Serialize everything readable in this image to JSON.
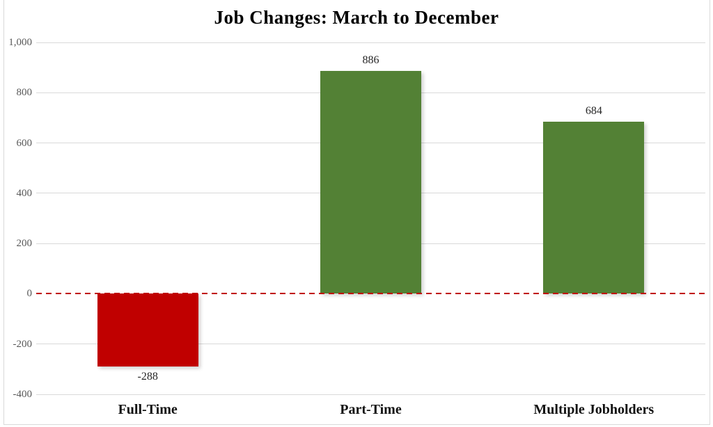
{
  "chart_data": {
    "type": "bar",
    "title": "Job Changes: March to December",
    "categories": [
      "Full-Time",
      "Part-Time",
      "Multiple Jobholders"
    ],
    "values": [
      -288,
      886,
      684
    ],
    "value_labels": [
      "-288",
      "886",
      "684"
    ],
    "xlabel": "",
    "ylabel": "",
    "ylim": [
      -400,
      1000
    ],
    "ytick_interval": 200,
    "yticks": [
      {
        "value": 1000,
        "label": "1,000"
      },
      {
        "value": 800,
        "label": "800"
      },
      {
        "value": 600,
        "label": "600"
      },
      {
        "value": 400,
        "label": "400"
      },
      {
        "value": 200,
        "label": "200"
      },
      {
        "value": 0,
        "label": "0"
      },
      {
        "value": -200,
        "label": "-200"
      },
      {
        "value": -400,
        "label": "-400"
      }
    ],
    "grid": true,
    "legend": "none",
    "zero_line": {
      "style": "dashed",
      "color": "#c00000"
    },
    "colors": {
      "positive_bar": "#538135",
      "negative_bar": "#c00000",
      "gridline": "#d9d9d9",
      "axis_text": "#595959",
      "value_text": "#262626",
      "category_text": "#111111",
      "title_text": "#000000",
      "background": "#ffffff"
    }
  }
}
